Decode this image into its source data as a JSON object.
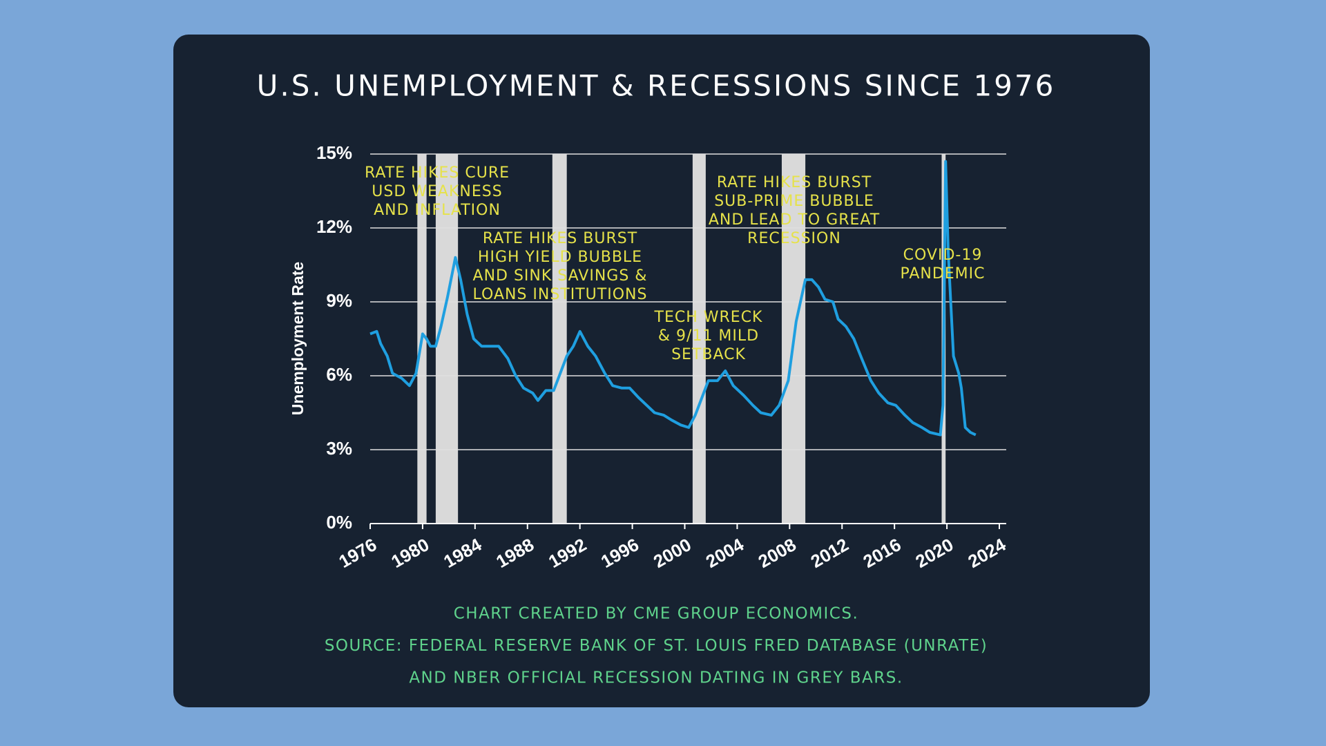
{
  "chart_data": {
    "type": "line",
    "title": "U.S. UNEMPLOYMENT & RECESSIONS SINCE 1976",
    "y_label": "Unemployment Rate",
    "color": "#1f9fe0",
    "recession_color": "#d9d9d9",
    "grid": true,
    "xlim": [
      1976,
      2024
    ],
    "ylim": [
      0,
      15
    ],
    "xticks": [
      1976,
      1980,
      1984,
      1988,
      1992,
      1996,
      2000,
      2004,
      2008,
      2012,
      2016,
      2020,
      2024
    ],
    "yticks": [
      {
        "value": 0,
        "label": "0%"
      },
      {
        "value": 3,
        "label": "3%"
      },
      {
        "value": 6,
        "label": "6%"
      },
      {
        "value": 9,
        "label": "9%"
      },
      {
        "value": 12,
        "label": "12%"
      },
      {
        "value": 15,
        "label": "15%"
      }
    ],
    "recessions": [
      [
        1979.6,
        1980.3
      ],
      [
        1981.0,
        1982.7
      ],
      [
        1989.9,
        1991.0
      ],
      [
        2000.6,
        2001.6
      ],
      [
        2007.4,
        2009.2
      ],
      [
        2019.6,
        2019.9
      ]
    ],
    "x": [
      1976.0,
      1976.5,
      1976.8,
      1977.3,
      1977.7,
      1978.4,
      1979.0,
      1979.5,
      1980.0,
      1980.3,
      1980.6,
      1981.0,
      1981.4,
      1981.9,
      1982.5,
      1982.9,
      1983.4,
      1983.9,
      1984.5,
      1985.2,
      1985.8,
      1986.5,
      1987.1,
      1987.7,
      1988.4,
      1988.8,
      1989.4,
      1990.0,
      1990.5,
      1991.0,
      1991.5,
      1992.0,
      1992.6,
      1993.2,
      1993.9,
      1994.5,
      1995.2,
      1995.8,
      1996.5,
      1997.1,
      1997.7,
      1998.4,
      1999.0,
      1999.7,
      2000.3,
      2000.8,
      2001.3,
      2001.8,
      2002.5,
      2003.1,
      2003.7,
      2004.5,
      2005.2,
      2005.8,
      2006.6,
      2007.2,
      2007.9,
      2008.5,
      2009.2,
      2009.7,
      2010.2,
      2010.7,
      2011.3,
      2011.7,
      2012.3,
      2012.9,
      2013.5,
      2014.2,
      2014.8,
      2015.5,
      2016.1,
      2016.8,
      2017.4,
      2018.1,
      2018.7,
      2019.5,
      2019.7,
      2019.9,
      2020.1,
      2020.5,
      2020.9,
      2021.1,
      2021.4,
      2021.8,
      2022.2
    ],
    "values": [
      7.7,
      7.8,
      7.3,
      6.8,
      6.1,
      5.9,
      5.6,
      6.1,
      7.7,
      7.5,
      7.2,
      7.2,
      8.0,
      9.2,
      10.8,
      9.9,
      8.5,
      7.5,
      7.2,
      7.2,
      7.2,
      6.7,
      6.0,
      5.5,
      5.3,
      5.0,
      5.4,
      5.4,
      6.1,
      6.8,
      7.2,
      7.8,
      7.2,
      6.8,
      6.1,
      5.6,
      5.5,
      5.5,
      5.1,
      4.8,
      4.5,
      4.4,
      4.2,
      4.0,
      3.9,
      4.4,
      5.1,
      5.8,
      5.8,
      6.2,
      5.6,
      5.2,
      4.8,
      4.5,
      4.4,
      4.8,
      5.8,
      8.2,
      9.9,
      9.9,
      9.6,
      9.1,
      9.0,
      8.3,
      8.0,
      7.5,
      6.7,
      5.8,
      5.3,
      4.9,
      4.8,
      4.4,
      4.1,
      3.9,
      3.7,
      3.6,
      4.8,
      14.7,
      11.0,
      6.8,
      6.1,
      5.5,
      3.9,
      3.7,
      3.6
    ],
    "annotations": [
      [
        "RATE HIKES CURE",
        "USD WEAKNESS",
        "AND INFLATION"
      ],
      [
        "RATE HIKES BURST",
        "HIGH YIELD BUBBLE",
        "AND SINK SAVINGS &",
        "LOANS INSTITUTIONS"
      ],
      [
        "TECH WRECK",
        "& 9/11 MILD",
        "SETBACK"
      ],
      [
        "RATE HIKES BURST",
        "SUB-PRIME BUBBLE",
        "AND LEAD TO GREAT",
        "RECESSION"
      ],
      [
        "COVID-19",
        "PANDEMIC"
      ]
    ],
    "source_lines": [
      "CHART CREATED BY CME GROUP ECONOMICS.",
      "SOURCE: FEDERAL RESERVE BANK OF ST. LOUIS FRED DATABASE (UNRATE)",
      "AND NBER OFFICIAL RECESSION DATING IN GREY BARS."
    ]
  }
}
